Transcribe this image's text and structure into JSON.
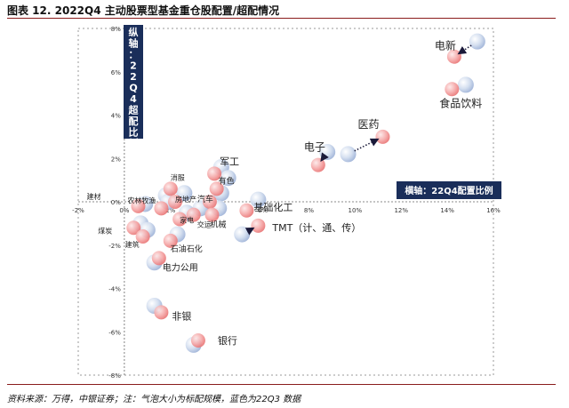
{
  "figure_title": "图表 12. 2022Q4 主动股票型基金重仓股配置/超配情况",
  "source_note": "资料来源：万得，中银证券；注：气泡大小为标配规模，蓝色为22Q3 数据",
  "y_axis_label": "纵轴：22Q4超配比例",
  "x_axis_label": "横轴：22Q4配置比例",
  "colors": {
    "q4": "#f08c8c",
    "q3": "#b7c8e6",
    "label_box": "#1a2e5a",
    "axis": "#555555",
    "arrow": "#1a1a3a"
  },
  "chart_data": {
    "type": "scatter",
    "title": "2022Q4 主动股票型基金重仓股配置/超配情况",
    "xlabel": "横轴：22Q4配置比例",
    "ylabel": "纵轴：22Q4超配比例",
    "xlim": [
      -2,
      16
    ],
    "ylim": [
      -8,
      8
    ],
    "x_ticks": [
      -2,
      0,
      2,
      4,
      6,
      8,
      10,
      12,
      14,
      16
    ],
    "y_ticks": [
      -8,
      -6,
      -4,
      -2,
      0,
      2,
      4,
      6,
      8
    ],
    "x_tick_labels": [
      "-2%",
      "0%",
      "2%",
      "4%",
      "6%",
      "8%",
      "10%",
      "12%",
      "14%",
      "16%"
    ],
    "y_tick_labels": [
      "-8%",
      "-6%",
      "-4%",
      "-2%",
      "0%",
      "2%",
      "4%",
      "6%",
      "8%"
    ],
    "grid": false,
    "series": [
      {
        "name": "22Q4",
        "color": "#f08c8c"
      },
      {
        "name": "22Q3",
        "color": "#b7c8e6"
      }
    ],
    "industries": [
      {
        "label": "电新",
        "q4": [
          14.3,
          6.7
        ],
        "q3": [
          15.3,
          7.4
        ],
        "arrow": true
      },
      {
        "label": "食品饮料",
        "q4": [
          14.2,
          5.2
        ],
        "q3": [
          14.8,
          5.4
        ]
      },
      {
        "label": "医药",
        "q4": [
          11.2,
          3.0
        ],
        "q3": [
          9.7,
          2.2
        ],
        "arrow": true
      },
      {
        "label": "电子",
        "q4": [
          8.4,
          1.7
        ],
        "q3": [
          8.8,
          2.3
        ],
        "arrow": true
      },
      {
        "label": "军工",
        "q4": [
          3.9,
          1.3
        ],
        "q3": [
          4.2,
          1.6
        ]
      },
      {
        "label": "有色",
        "q4": [
          4.0,
          0.6
        ],
        "q3": [
          4.5,
          1.1
        ]
      },
      {
        "label": "基础化工",
        "q4": [
          5.3,
          -0.4
        ],
        "q3": [
          5.8,
          0.1
        ]
      },
      {
        "label": "汽车",
        "q4": [
          3.7,
          0.0
        ],
        "q3": [
          4.2,
          0.4
        ]
      },
      {
        "label": "机械",
        "q4": [
          3.8,
          -0.6
        ],
        "q3": [
          4.1,
          -0.3
        ]
      },
      {
        "label": "TMT（计、通、传）",
        "q4": [
          5.8,
          -1.1
        ],
        "q3": [
          5.1,
          -1.5
        ],
        "arrow": true
      },
      {
        "label": "消服",
        "q4": [
          2.0,
          0.6
        ],
        "q3": [
          1.8,
          0.3
        ]
      },
      {
        "label": "房地产",
        "q4": [
          2.2,
          0.0
        ],
        "q3": [
          2.6,
          0.4
        ]
      },
      {
        "label": "农林牧渔",
        "q4": [
          1.6,
          -0.3
        ],
        "q3": [
          1.9,
          0.0
        ]
      },
      {
        "label": "建材",
        "q4": [
          0.6,
          -0.2
        ],
        "q3": [
          0.9,
          -0.1
        ]
      },
      {
        "label": "交运",
        "q4": [
          3.0,
          -0.6
        ],
        "q3": [
          3.3,
          -0.3
        ]
      },
      {
        "label": "家电",
        "q4": [
          2.4,
          -0.8
        ],
        "q3": [
          2.7,
          -0.5
        ]
      },
      {
        "label": "煤炭",
        "q4": [
          0.4,
          -1.2
        ],
        "q3": [
          0.7,
          -1.0
        ]
      },
      {
        "label": "石油石化",
        "q4": [
          2.0,
          -1.8
        ],
        "q3": [
          2.3,
          -1.5
        ]
      },
      {
        "label": "建筑",
        "q4": [
          0.8,
          -1.6
        ],
        "q3": [
          1.0,
          -1.3
        ]
      },
      {
        "label": "电力公用",
        "q4": [
          1.5,
          -2.6
        ],
        "q3": [
          1.3,
          -2.8
        ]
      },
      {
        "label": "非银",
        "q4": [
          1.6,
          -5.1
        ],
        "q3": [
          1.3,
          -4.8
        ]
      },
      {
        "label": "银行",
        "q4": [
          3.2,
          -6.4
        ],
        "q3": [
          3.0,
          -6.6
        ]
      }
    ]
  }
}
